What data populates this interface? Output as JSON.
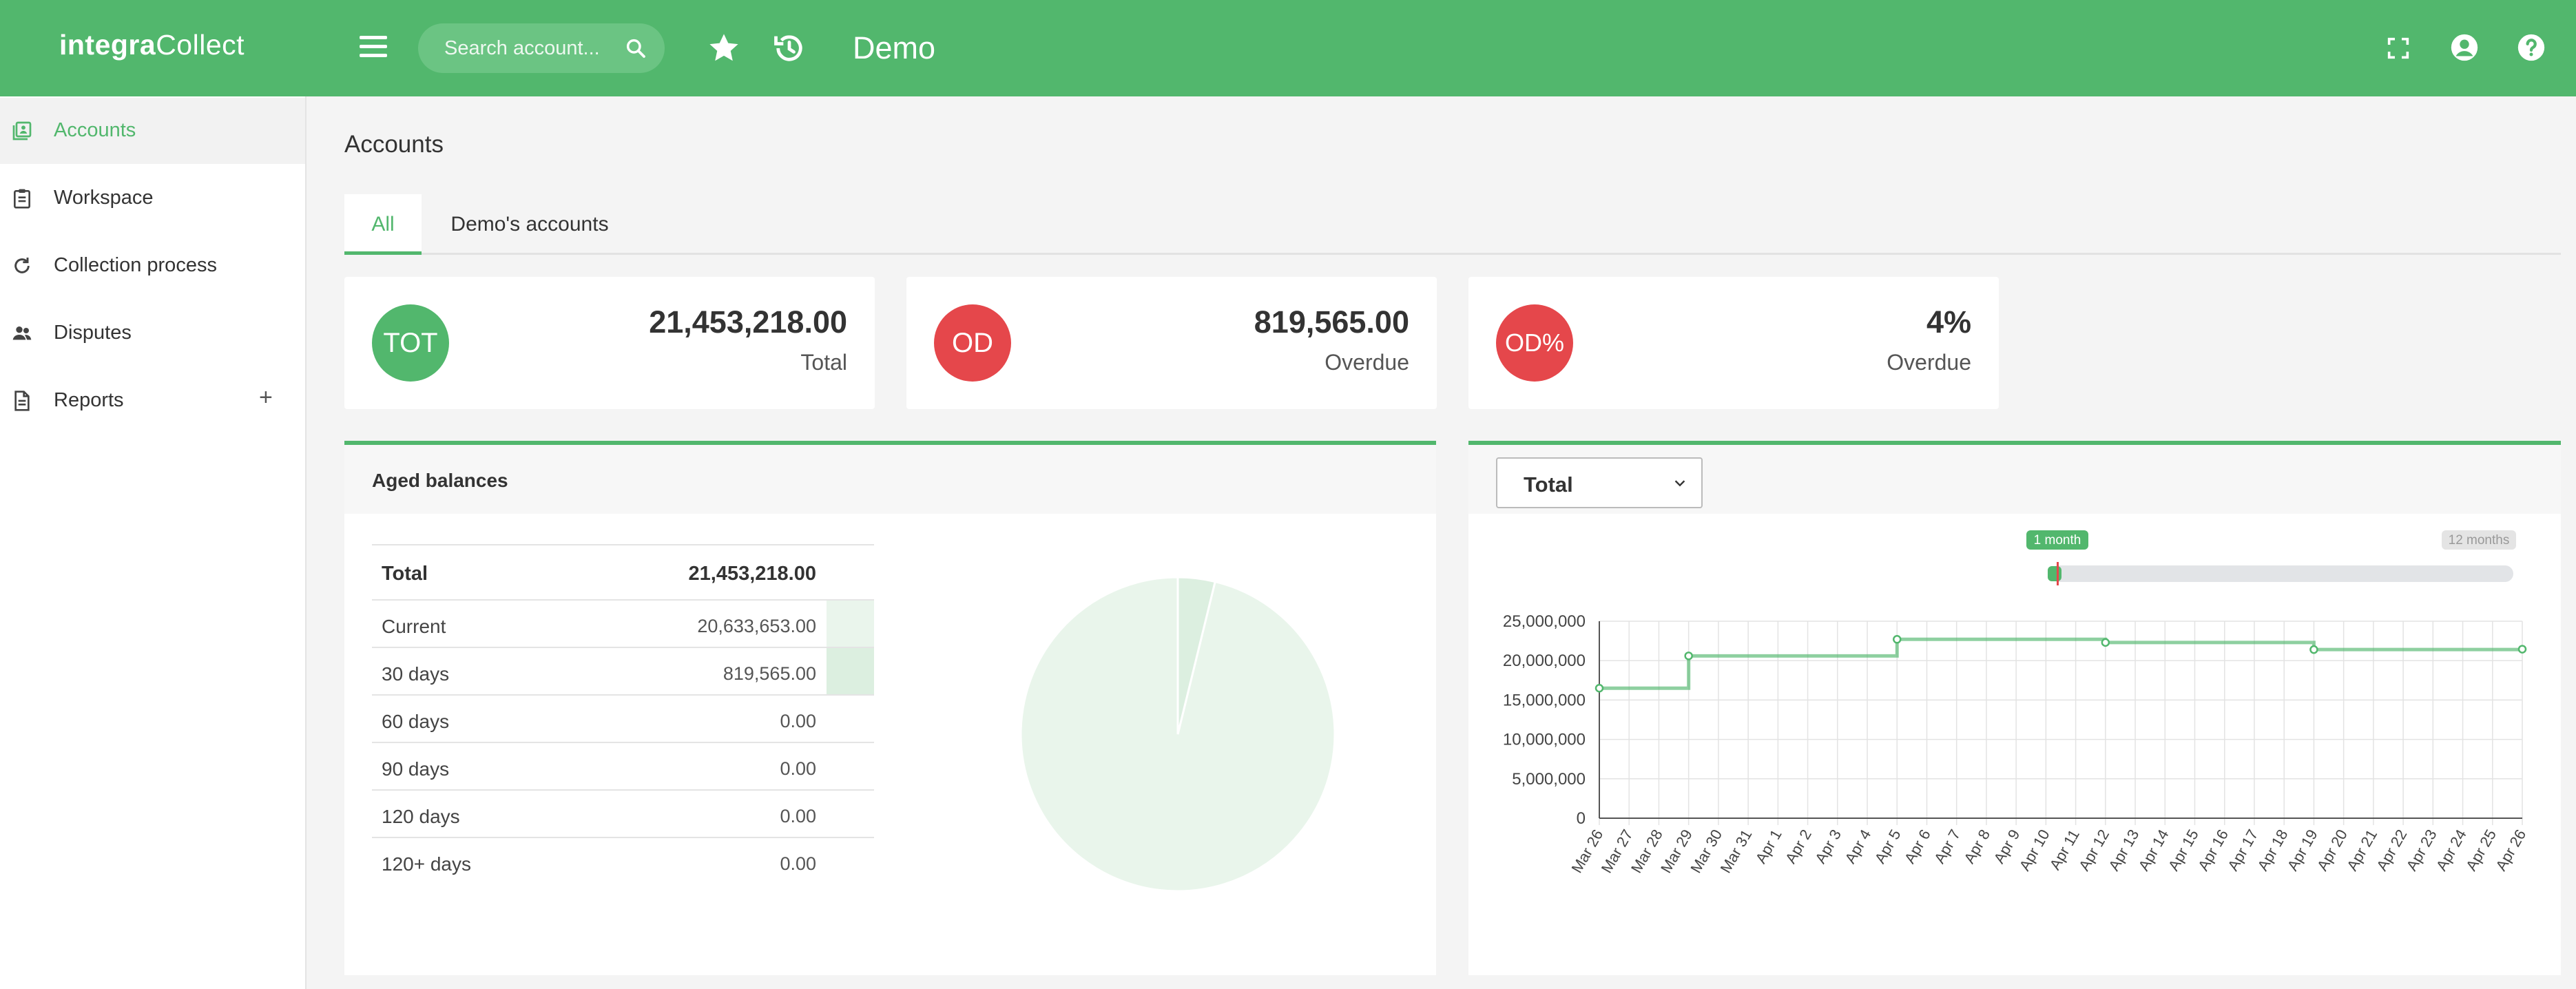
{
  "app": {
    "logo_bold": "integra",
    "logo_rest": "Collect",
    "title": "Demo"
  },
  "search": {
    "placeholder": "Search account..."
  },
  "icons": {
    "menu": "hamburger-icon",
    "search": "search-icon",
    "favorites": "star-icon",
    "history": "history-icon",
    "fullscreen": "fullscreen-icon",
    "account": "user-circle-icon",
    "help": "help-circle-icon"
  },
  "sidebar": {
    "items": [
      {
        "label": "Accounts",
        "icon": "accounts-icon",
        "active": true
      },
      {
        "label": "Workspace",
        "icon": "clipboard-icon"
      },
      {
        "label": "Collection process",
        "icon": "refresh-icon"
      },
      {
        "label": "Disputes",
        "icon": "people-icon"
      },
      {
        "label": "Reports",
        "icon": "document-icon",
        "expand": "+"
      }
    ]
  },
  "page": {
    "title": "Accounts"
  },
  "tabs": [
    {
      "label": "All",
      "active": true
    },
    {
      "label": "Demo's accounts"
    }
  ],
  "kpis": [
    {
      "badge": "TOT",
      "value": "21,453,218.00",
      "label": "Total",
      "color": "#52b76d"
    },
    {
      "badge": "OD",
      "value": "819,565.00",
      "label": "Overdue",
      "color": "#e5474b"
    },
    {
      "badge": "OD%",
      "value": "4%",
      "label": "Overdue",
      "color": "#e5474b"
    }
  ],
  "aged": {
    "title": "Aged balances",
    "total": {
      "label": "Total",
      "value": "21,453,218.00"
    },
    "rows": [
      {
        "label": "Current",
        "value": "20,633,653.00",
        "bar_color": "#eaf5ec"
      },
      {
        "label": "30 days",
        "value": "819,565.00",
        "bar_color": "#dcefe0"
      },
      {
        "label": "60 days",
        "value": "0.00"
      },
      {
        "label": "90 days",
        "value": "0.00"
      },
      {
        "label": "120 days",
        "value": "0.00"
      },
      {
        "label": "120+ days",
        "value": "0.00"
      }
    ]
  },
  "trend": {
    "select_value": "Total",
    "range_min_label": "1 month",
    "range_max_label": "12 months"
  },
  "chart_data": [
    {
      "type": "pie",
      "categories": [
        "Current",
        "30 days",
        "60 days",
        "90 days",
        "120 days",
        "120+ days"
      ],
      "values": [
        20633653,
        819565,
        0,
        0,
        0,
        0
      ],
      "colors": [
        "#e9f5eb",
        "#dcefe0"
      ]
    },
    {
      "type": "line",
      "step": true,
      "color": "#52b76d",
      "grid": true,
      "ylim": [
        0,
        25000000
      ],
      "yticks": [
        "0",
        "5,000,000",
        "10,000,000",
        "15,000,000",
        "20,000,000",
        "25,000,000"
      ],
      "categories": [
        "Mar 26",
        "Mar 27",
        "Mar 28",
        "Mar 29",
        "Mar 30",
        "Mar 31",
        "Apr 1",
        "Apr 2",
        "Apr 3",
        "Apr 4",
        "Apr 5",
        "Apr 6",
        "Apr 7",
        "Apr 8",
        "Apr 9",
        "Apr 10",
        "Apr 11",
        "Apr 12",
        "Apr 13",
        "Apr 14",
        "Apr 15",
        "Apr 16",
        "Apr 17",
        "Apr 18",
        "Apr 19",
        "Apr 20",
        "Apr 21",
        "Apr 22",
        "Apr 23",
        "Apr 24",
        "Apr 25",
        "Apr 26"
      ],
      "points": [
        {
          "x": "Mar 26",
          "y": 16500000
        },
        {
          "x": "Mar 29",
          "y": 20600000
        },
        {
          "x": "Apr 5",
          "y": 22700000
        },
        {
          "x": "Apr 12",
          "y": 22300000
        },
        {
          "x": "Apr 19",
          "y": 21400000
        },
        {
          "x": "Apr 26",
          "y": 21453218
        }
      ]
    }
  ]
}
